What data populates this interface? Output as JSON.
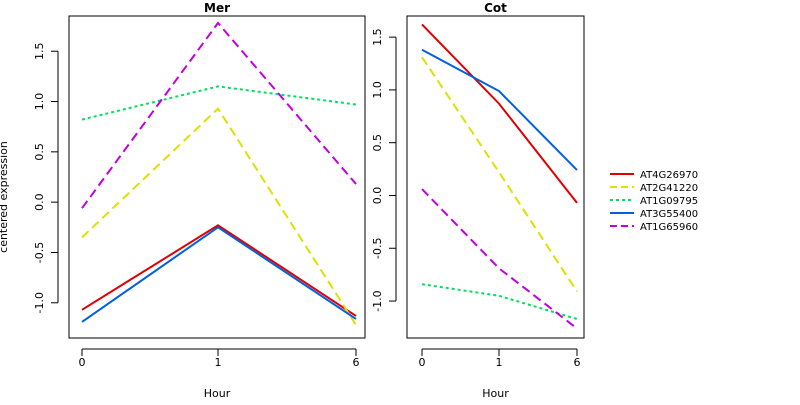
{
  "figure": {
    "ylabel": "centered expression",
    "xlabel": "Hour"
  },
  "legend": {
    "position": "right",
    "entries": [
      {
        "name": "AT4G26970",
        "color": "#e00000",
        "dash": "solid"
      },
      {
        "name": "AT2G41220",
        "color": "#e0e000",
        "dash": "dashed"
      },
      {
        "name": "AT1G09795",
        "color": "#00e060",
        "dash": "dotted"
      },
      {
        "name": "AT3G55400",
        "color": "#0060e0",
        "dash": "solid"
      },
      {
        "name": "AT1G65960",
        "color": "#c000e0",
        "dash": "dashed"
      }
    ]
  },
  "chart_data": [
    {
      "type": "line",
      "title": "Mer",
      "xlabel": "Hour",
      "ylabel": "centered expression",
      "x": [
        "0",
        "1",
        "6"
      ],
      "ylim": [
        -1.35,
        1.85
      ],
      "yticks": [
        "-1.0",
        "-0.5",
        "0.0",
        "0.5",
        "1.0",
        "1.5"
      ],
      "grid": false,
      "series": [
        {
          "name": "AT4G26970",
          "values": [
            -1.07,
            -0.23,
            -1.13
          ]
        },
        {
          "name": "AT2G41220",
          "values": [
            -0.35,
            0.93,
            -1.22
          ]
        },
        {
          "name": "AT1G09795",
          "values": [
            0.82,
            1.15,
            0.97
          ]
        },
        {
          "name": "AT3G55400",
          "values": [
            -1.19,
            -0.25,
            -1.16
          ]
        },
        {
          "name": "AT1G65960",
          "values": [
            -0.06,
            1.78,
            0.18
          ]
        }
      ]
    },
    {
      "type": "line",
      "title": "Cot",
      "xlabel": "Hour",
      "x": [
        "0",
        "1",
        "6"
      ],
      "ylim": [
        -1.35,
        1.7
      ],
      "yticks": [
        "-1.0",
        "-0.5",
        "0.0",
        "0.5",
        "1.0",
        "1.5"
      ],
      "grid": false,
      "series": [
        {
          "name": "AT4G26970",
          "values": [
            1.62,
            0.87,
            -0.07
          ]
        },
        {
          "name": "AT2G41220",
          "values": [
            1.31,
            0.22,
            -0.91
          ]
        },
        {
          "name": "AT1G09795",
          "values": [
            -0.84,
            -0.95,
            -1.17
          ]
        },
        {
          "name": "AT3G55400",
          "values": [
            1.38,
            0.99,
            0.24
          ]
        },
        {
          "name": "AT1G65960",
          "values": [
            0.06,
            -0.69,
            -1.26
          ]
        }
      ]
    }
  ]
}
